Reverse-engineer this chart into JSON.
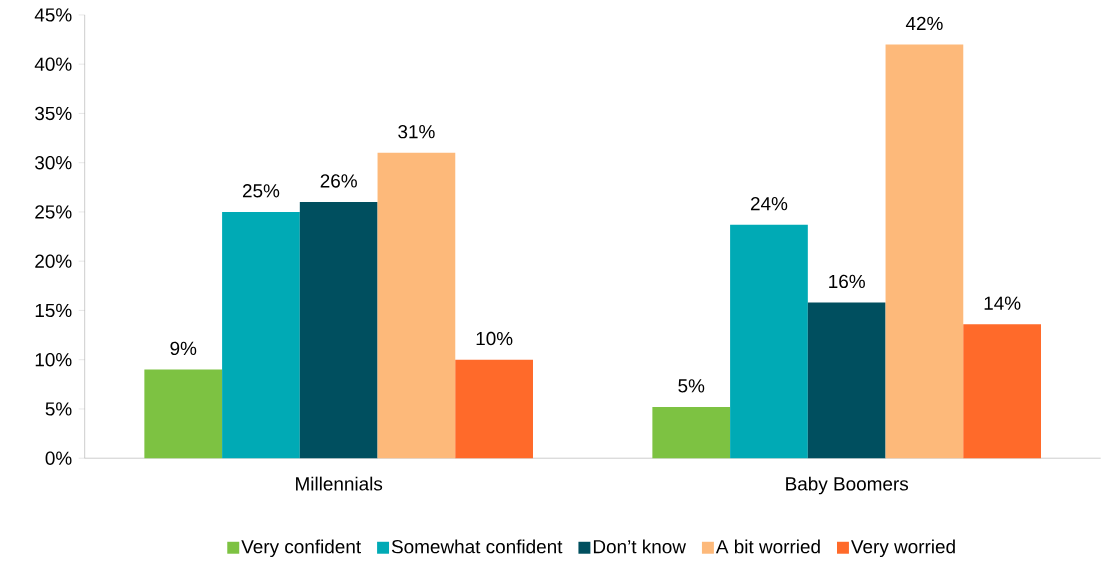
{
  "chart_data": {
    "type": "bar",
    "categories": [
      "Millennials",
      "Baby Boomers"
    ],
    "series": [
      {
        "name": "Very confident",
        "color": "#7dc242",
        "values": [
          9,
          5.2
        ],
        "value_labels": [
          "9%",
          "5%"
        ]
      },
      {
        "name": "Somewhat confident",
        "color": "#00aab5",
        "values": [
          25,
          23.7
        ],
        "value_labels": [
          "25%",
          "24%"
        ]
      },
      {
        "name": "Don’t know",
        "color": "#004f5f",
        "values": [
          26,
          15.8
        ],
        "value_labels": [
          "26%",
          "16%"
        ]
      },
      {
        "name": "A bit worried",
        "color": "#fdb97a",
        "values": [
          31,
          42
        ],
        "value_labels": [
          "31%",
          "42%"
        ]
      },
      {
        "name": "Very worried",
        "color": "#ff6a2a",
        "values": [
          10,
          13.6
        ],
        "value_labels": [
          "10%",
          "14%"
        ]
      }
    ],
    "ylim": [
      0,
      45
    ],
    "yticks": [
      {
        "value": 0,
        "label": "0%"
      },
      {
        "value": 5,
        "label": "5%"
      },
      {
        "value": 10,
        "label": "10%"
      },
      {
        "value": 15,
        "label": "15%"
      },
      {
        "value": 20,
        "label": "20%"
      },
      {
        "value": 25,
        "label": "25%"
      },
      {
        "value": 30,
        "label": "30%"
      },
      {
        "value": 35,
        "label": "35%"
      },
      {
        "value": 40,
        "label": "40%"
      },
      {
        "value": 45,
        "label": "45%"
      }
    ],
    "legend": "bottom"
  }
}
